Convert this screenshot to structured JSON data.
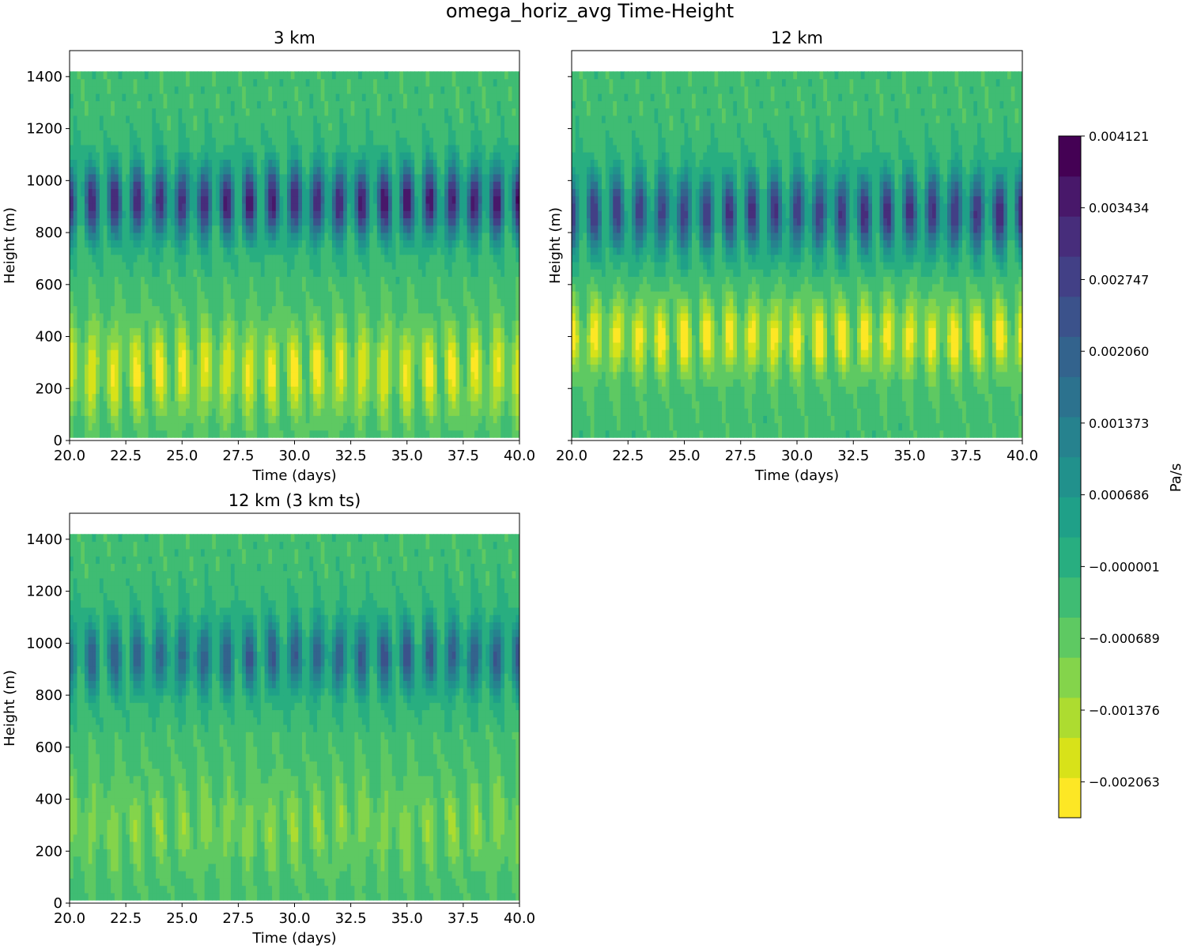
{
  "figure_title": "omega_horiz_avg Time-Height",
  "colorbar": {
    "label": "Pa/s",
    "tick_labels": [
      "0.004121",
      "0.003434",
      "0.002747",
      "0.002060",
      "0.001373",
      "0.000686",
      "−0.000001",
      "−0.000689",
      "−0.001376",
      "−0.002063"
    ],
    "tick_values": [
      0.004121,
      0.003434,
      0.002747,
      0.00206,
      0.001373,
      0.000686,
      -1e-06,
      -0.000689,
      -0.001376,
      -0.002063
    ],
    "range": [
      -0.002406,
      0.004121
    ],
    "levels": 19,
    "colors": [
      "#fde725",
      "#d8e219",
      "#addc30",
      "#84d44b",
      "#5ec962",
      "#3fbc73",
      "#28ae80",
      "#1fa088",
      "#21918c",
      "#26828e",
      "#2c728e",
      "#33638d",
      "#3b528b",
      "#424086",
      "#472d7b",
      "#48186a",
      "#440154"
    ]
  },
  "chart_data": [
    {
      "type": "heatmap",
      "title": "3 km",
      "xlabel": "Time (days)",
      "ylabel": "Height (m)",
      "xlim": [
        20.0,
        40.0
      ],
      "ylim": [
        0,
        1500
      ],
      "data_top": 1420,
      "x_ticks": [
        20.0,
        22.5,
        25.0,
        27.5,
        30.0,
        32.5,
        35.0,
        37.5,
        40.0
      ],
      "x_tick_labels": [
        "20.0",
        "22.5",
        "25.0",
        "27.5",
        "30.0",
        "32.5",
        "35.0",
        "37.5",
        "40.0"
      ],
      "y_ticks": [
        0,
        200,
        400,
        600,
        800,
        1000,
        1200,
        1400
      ],
      "y_tick_labels": [
        "0",
        "200",
        "400",
        "600",
        "800",
        "1000",
        "1200",
        "1400"
      ],
      "field": {
        "period_days": 1.0,
        "lower_peak_height": 270,
        "lower_width": 180,
        "lower_amp": -0.0019,
        "upper_peak_height": 920,
        "upper_width": 140,
        "upper_amp": 0.0036,
        "upper_growth": 0.15
      }
    },
    {
      "type": "heatmap",
      "title": "12 km",
      "xlabel": "Time (days)",
      "ylabel": "Height (m)",
      "xlim": [
        20.0,
        40.0
      ],
      "ylim": [
        0,
        1500
      ],
      "data_top": 1420,
      "x_ticks": [
        20.0,
        22.5,
        25.0,
        27.5,
        30.0,
        32.5,
        35.0,
        37.5,
        40.0
      ],
      "x_tick_labels": [
        "20.0",
        "22.5",
        "25.0",
        "27.5",
        "30.0",
        "32.5",
        "35.0",
        "37.5",
        "40.0"
      ],
      "y_ticks": [
        0,
        200,
        400,
        600,
        800,
        1000,
        1200,
        1400
      ],
      "y_tick_labels": [],
      "field": {
        "period_days": 1.0,
        "lower_peak_height": 400,
        "lower_width": 140,
        "lower_amp": -0.0021,
        "upper_peak_height": 880,
        "upper_width": 150,
        "upper_amp": 0.0032,
        "upper_growth": 0.15
      }
    },
    {
      "type": "heatmap",
      "title": "12 km (3 km ts)",
      "xlabel": "Time (days)",
      "ylabel": "Height (m)",
      "xlim": [
        20.0,
        40.0
      ],
      "ylim": [
        0,
        1500
      ],
      "data_top": 1420,
      "x_ticks": [
        20.0,
        22.5,
        25.0,
        27.5,
        30.0,
        32.5,
        35.0,
        37.5,
        40.0
      ],
      "x_tick_labels": [
        "20.0",
        "22.5",
        "25.0",
        "27.5",
        "30.0",
        "32.5",
        "35.0",
        "37.5",
        "40.0"
      ],
      "y_ticks": [
        0,
        200,
        400,
        600,
        800,
        1000,
        1200,
        1400
      ],
      "y_tick_labels": [
        "0",
        "200",
        "400",
        "600",
        "800",
        "1000",
        "1200",
        "1400"
      ],
      "field": {
        "period_days": 1.0,
        "lower_peak_height": 300,
        "lower_width": 200,
        "lower_amp": -0.0009,
        "upper_peak_height": 950,
        "upper_width": 140,
        "upper_amp": 0.0024,
        "upper_growth": 0.15
      }
    }
  ]
}
